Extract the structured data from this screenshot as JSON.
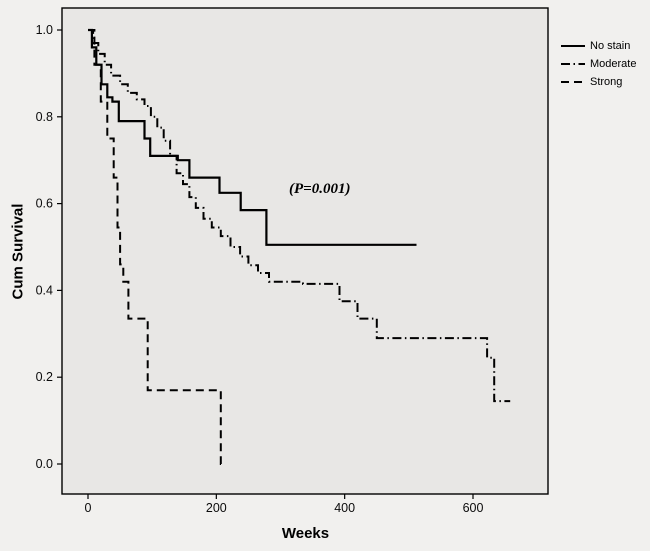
{
  "colors": {
    "figure_bg": "#f1f0ee",
    "plot_bg": "#e8e7e5",
    "line": "#000000"
  },
  "chart_data": {
    "type": "line",
    "subtype": "kaplan-meier-step",
    "title": "",
    "xlabel": "Weeks",
    "ylabel": "Cum Survival",
    "xlim": [
      -40,
      717
    ],
    "ylim": [
      -0.07,
      1.05
    ],
    "grid": false,
    "legend_position": "top-right-outside",
    "x_ticks": [
      {
        "value": 0,
        "label": "0"
      },
      {
        "value": 200,
        "label": "200"
      },
      {
        "value": 400,
        "label": "400"
      },
      {
        "value": 600,
        "label": "600"
      }
    ],
    "y_ticks": [
      {
        "value": 0.0,
        "label": "0.0"
      },
      {
        "value": 0.2,
        "label": "0.2"
      },
      {
        "value": 0.4,
        "label": "0.4"
      },
      {
        "value": 0.6,
        "label": "0.6"
      },
      {
        "value": 0.8,
        "label": "0.8"
      },
      {
        "value": 1.0,
        "label": "1.0"
      }
    ],
    "annotation": {
      "text": "(P=0.001)",
      "x": 320,
      "y": 0.63
    },
    "series": [
      {
        "name": "No stain",
        "line_style": "solid",
        "color": "#000000",
        "points": [
          [
            0,
            1.0
          ],
          [
            6,
            0.96
          ],
          [
            13,
            0.92
          ],
          [
            21,
            0.875
          ],
          [
            30,
            0.845
          ],
          [
            38,
            0.835
          ],
          [
            48,
            0.79
          ],
          [
            88,
            0.75
          ],
          [
            97,
            0.71
          ],
          [
            140,
            0.7
          ],
          [
            158,
            0.66
          ],
          [
            205,
            0.625
          ],
          [
            238,
            0.585
          ],
          [
            278,
            0.505
          ],
          [
            512,
            0.505
          ]
        ]
      },
      {
        "name": "Moderate",
        "line_style": "dash-dot",
        "color": "#000000",
        "points": [
          [
            0,
            1.0
          ],
          [
            8,
            0.97
          ],
          [
            16,
            0.945
          ],
          [
            26,
            0.92
          ],
          [
            36,
            0.895
          ],
          [
            50,
            0.875
          ],
          [
            62,
            0.855
          ],
          [
            76,
            0.84
          ],
          [
            88,
            0.825
          ],
          [
            98,
            0.8
          ],
          [
            108,
            0.775
          ],
          [
            118,
            0.745
          ],
          [
            128,
            0.71
          ],
          [
            138,
            0.67
          ],
          [
            148,
            0.645
          ],
          [
            158,
            0.615
          ],
          [
            168,
            0.59
          ],
          [
            180,
            0.565
          ],
          [
            193,
            0.545
          ],
          [
            207,
            0.525
          ],
          [
            222,
            0.5
          ],
          [
            237,
            0.478
          ],
          [
            250,
            0.458
          ],
          [
            265,
            0.44
          ],
          [
            282,
            0.42
          ],
          [
            335,
            0.415
          ],
          [
            392,
            0.375
          ],
          [
            420,
            0.335
          ],
          [
            450,
            0.29
          ],
          [
            622,
            0.245
          ],
          [
            633,
            0.145
          ],
          [
            658,
            0.145
          ]
        ]
      },
      {
        "name": "Strong",
        "line_style": "dashed",
        "color": "#000000",
        "points": [
          [
            0,
            1.0
          ],
          [
            10,
            0.92
          ],
          [
            20,
            0.835
          ],
          [
            30,
            0.75
          ],
          [
            40,
            0.66
          ],
          [
            46,
            0.545
          ],
          [
            50,
            0.46
          ],
          [
            55,
            0.42
          ],
          [
            63,
            0.335
          ],
          [
            93,
            0.17
          ],
          [
            207,
            0.0
          ],
          [
            214,
            0.0
          ]
        ]
      }
    ]
  }
}
